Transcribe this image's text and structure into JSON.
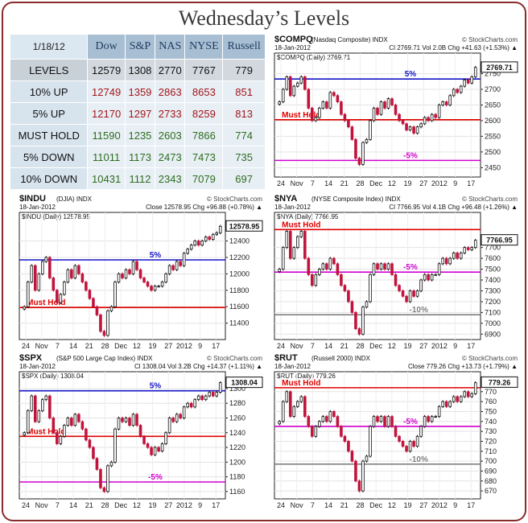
{
  "page": {
    "title": "Wednesday’s Levels"
  },
  "levels_table": {
    "date": "1/18/12",
    "columns": [
      "Dow",
      "S&P",
      "NAS",
      "NYSE",
      "Russell"
    ],
    "rows": [
      {
        "label": "LEVELS",
        "values": [
          "12579",
          "1308",
          "2770",
          "7767",
          "779"
        ],
        "color": "#111111"
      },
      {
        "label": "10% UP",
        "values": [
          "12749",
          "1359",
          "2863",
          "8653",
          "851"
        ],
        "color": "#a3161a"
      },
      {
        "label": "5% UP",
        "values": [
          "12170",
          "1297",
          "2733",
          "8259",
          "813"
        ],
        "color": "#a3161a"
      },
      {
        "label": "MUST HOLD",
        "values": [
          "11590",
          "1235",
          "2603",
          "7866",
          "774"
        ],
        "color": "#2e6b1e"
      },
      {
        "label": "5% DOWN",
        "values": [
          "11011",
          "1173",
          "2473",
          "7473",
          "735"
        ],
        "color": "#2e6b1e"
      },
      {
        "label": "10% DOWN",
        "values": [
          "10431",
          "1112",
          "2343",
          "7079",
          "697"
        ],
        "color": "#2e6b1e"
      }
    ]
  },
  "colors": {
    "frame": "#8a2a2a",
    "up_candle": "#ffffff",
    "down_candle": "#c0143c",
    "five_pct_line": "#1414c8",
    "must_hold_line": "#e00000",
    "minus_five_line": "#d000d0",
    "minus_ten_line": "#808080",
    "chart_border": "#222222"
  },
  "x_axis_labels": [
    "24",
    "Nov",
    "7",
    "14",
    "21",
    "28",
    "Dec",
    "12",
    "19",
    "27",
    "2012",
    "9",
    "17"
  ],
  "chart_data": [
    {
      "type": "candlestick",
      "symbol": "$COMPQ",
      "title": "$COMPQ",
      "subtitle": "(Nasdaq Composite) INDX",
      "watermark": "© StockCharts.com",
      "date": "18-Jan-2012",
      "stats": "Cl 2769.71 Vol 2.0B Chg +41.63 (+1.53%) ▲",
      "legend": "$COMPQ (Daily) 2769.71",
      "last_label": "2769.71",
      "last_value": 2769.71,
      "ylim": [
        2420,
        2790
      ],
      "yticks": [
        2450,
        2500,
        2550,
        2600,
        2650,
        2700,
        2750
      ],
      "levels": [
        {
          "value": 2733,
          "label": "5%",
          "kind": "five"
        },
        {
          "value": 2603,
          "label": "Must Hold",
          "kind": "hold"
        },
        {
          "value": 2473,
          "label": "-5%",
          "kind": "minus5"
        }
      ],
      "closes": [
        2660,
        2700,
        2740,
        2680,
        2710,
        2720,
        2740,
        2700,
        2640,
        2600,
        2610,
        2640,
        2660,
        2640,
        2690,
        2680,
        2660,
        2620,
        2600,
        2580,
        2540,
        2480,
        2460,
        2530,
        2540,
        2600,
        2640,
        2620,
        2660,
        2640,
        2670,
        2650,
        2620,
        2600,
        2590,
        2570,
        2580,
        2560,
        2580,
        2590,
        2610,
        2600,
        2620,
        2610,
        2650,
        2660,
        2650,
        2680,
        2700,
        2690,
        2710,
        2730,
        2720,
        2740,
        2770
      ]
    },
    {
      "type": "candlestick",
      "symbol": "$INDU",
      "title": "$INDU",
      "subtitle": "(DJIA) INDX",
      "watermark": "© StockCharts.com",
      "date": "18-Jan-2012",
      "stats": "Close 12578.95 Chg +96.88 (+0.78%) ▲",
      "legend": "$INDU (Daily) 12578.95",
      "last_label": "12578.95",
      "last_value": 12578.95,
      "ylim": [
        11200,
        12650
      ],
      "yticks": [
        11400,
        11600,
        11800,
        12000,
        12200,
        12400
      ],
      "levels": [
        {
          "value": 12170,
          "label": "5%",
          "kind": "five"
        },
        {
          "value": 11590,
          "label": "Must Hold",
          "kind": "hold"
        }
      ],
      "closes": [
        11600,
        11900,
        12100,
        11800,
        12000,
        12150,
        12200,
        11950,
        11800,
        11650,
        11750,
        11900,
        12050,
        11950,
        12100,
        12000,
        11900,
        11800,
        11700,
        11600,
        11500,
        11300,
        11250,
        11550,
        11600,
        11900,
        12000,
        11950,
        12050,
        12000,
        12150,
        12050,
        11950,
        11900,
        11850,
        11800,
        11850,
        11850,
        11900,
        12000,
        12100,
        12050,
        12150,
        12100,
        12250,
        12300,
        12350,
        12400,
        12350,
        12400,
        12450,
        12420,
        12480,
        12500,
        12579
      ]
    },
    {
      "type": "candlestick",
      "symbol": "$NYA",
      "title": "$NYA",
      "subtitle": "(NYSE Composite Index) INDX",
      "watermark": "© StockCharts.com",
      "date": "18-Jan-2012",
      "stats": "Cl 7766.95 Vol 4.1B Chg +96.48 (+1.26%) ▲",
      "legend": "$NYA (Daily) 7766.95",
      "last_label": "7766.95",
      "last_value": 7766.95,
      "ylim": [
        6850,
        7950
      ],
      "yticks": [
        6900,
        7000,
        7100,
        7200,
        7300,
        7400,
        7500,
        7600,
        7700
      ],
      "levels": [
        {
          "value": 7866,
          "label": "Must Hold",
          "kind": "hold"
        },
        {
          "value": 7473,
          "label": "-5%",
          "kind": "minus5"
        },
        {
          "value": 7079,
          "label": "-10%",
          "kind": "minus10"
        }
      ],
      "closes": [
        7500,
        7700,
        7850,
        7600,
        7700,
        7800,
        7850,
        7600,
        7450,
        7350,
        7450,
        7500,
        7550,
        7500,
        7600,
        7550,
        7450,
        7350,
        7300,
        7200,
        7100,
        6950,
        6900,
        7150,
        7200,
        7450,
        7550,
        7500,
        7550,
        7500,
        7550,
        7450,
        7350,
        7300,
        7250,
        7200,
        7300,
        7250,
        7300,
        7400,
        7450,
        7400,
        7450,
        7450,
        7550,
        7600,
        7550,
        7600,
        7650,
        7600,
        7650,
        7700,
        7680,
        7700,
        7767
      ]
    },
    {
      "type": "candlestick",
      "symbol": "$SPX",
      "title": "$SPX",
      "subtitle": "(S&P 500 Large Cap Index) INDX",
      "watermark": "© StockCharts.com",
      "date": "18-Jan-2012",
      "stats": "Cl 1308.04 Vol 3.2B Chg +14.37 (+1.11%) ▲",
      "legend": "$SPX (Daily) 1308.04",
      "last_label": "1308.04",
      "last_value": 1308.04,
      "ylim": [
        1150,
        1312
      ],
      "yticks": [
        1160,
        1180,
        1200,
        1220,
        1240,
        1260,
        1280,
        1300
      ],
      "levels": [
        {
          "value": 1297,
          "label": "5%",
          "kind": "five"
        },
        {
          "value": 1235,
          "label": "Must Hold",
          "kind": "hold"
        },
        {
          "value": 1173,
          "label": "-5%",
          "kind": "minus5"
        }
      ],
      "closes": [
        1240,
        1270,
        1290,
        1255,
        1270,
        1285,
        1290,
        1260,
        1240,
        1225,
        1235,
        1250,
        1260,
        1250,
        1265,
        1255,
        1245,
        1230,
        1220,
        1205,
        1190,
        1165,
        1160,
        1195,
        1200,
        1245,
        1260,
        1255,
        1260,
        1250,
        1265,
        1250,
        1235,
        1225,
        1220,
        1210,
        1220,
        1215,
        1225,
        1240,
        1260,
        1255,
        1265,
        1260,
        1275,
        1280,
        1275,
        1285,
        1290,
        1285,
        1290,
        1295,
        1290,
        1295,
        1308
      ]
    },
    {
      "type": "candlestick",
      "symbol": "$RUT",
      "title": "$RUT",
      "subtitle": "(Russell 2000) INDX",
      "watermark": "© StockCharts.com",
      "date": "18-Jan-2012",
      "stats": "Close 779.26 Chg +13.73 (+1.79%) ▲",
      "legend": "$RUT (Daily) 779.26",
      "last_label": "779.26",
      "last_value": 779.26,
      "ylim": [
        662,
        782
      ],
      "yticks": [
        670,
        680,
        690,
        700,
        710,
        720,
        730,
        740,
        750,
        760,
        770
      ],
      "levels": [
        {
          "value": 774,
          "label": "Must Hold",
          "kind": "hold"
        },
        {
          "value": 735,
          "label": "-5%",
          "kind": "minus5"
        },
        {
          "value": 697,
          "label": "-10%",
          "kind": "minus10"
        }
      ],
      "closes": [
        740,
        760,
        770,
        745,
        755,
        760,
        765,
        745,
        735,
        725,
        735,
        740,
        745,
        740,
        750,
        745,
        735,
        725,
        720,
        710,
        700,
        680,
        670,
        700,
        705,
        735,
        745,
        740,
        745,
        735,
        745,
        735,
        725,
        720,
        715,
        710,
        720,
        715,
        725,
        735,
        745,
        740,
        745,
        745,
        755,
        760,
        755,
        760,
        765,
        760,
        765,
        770,
        765,
        768,
        779
      ]
    }
  ]
}
